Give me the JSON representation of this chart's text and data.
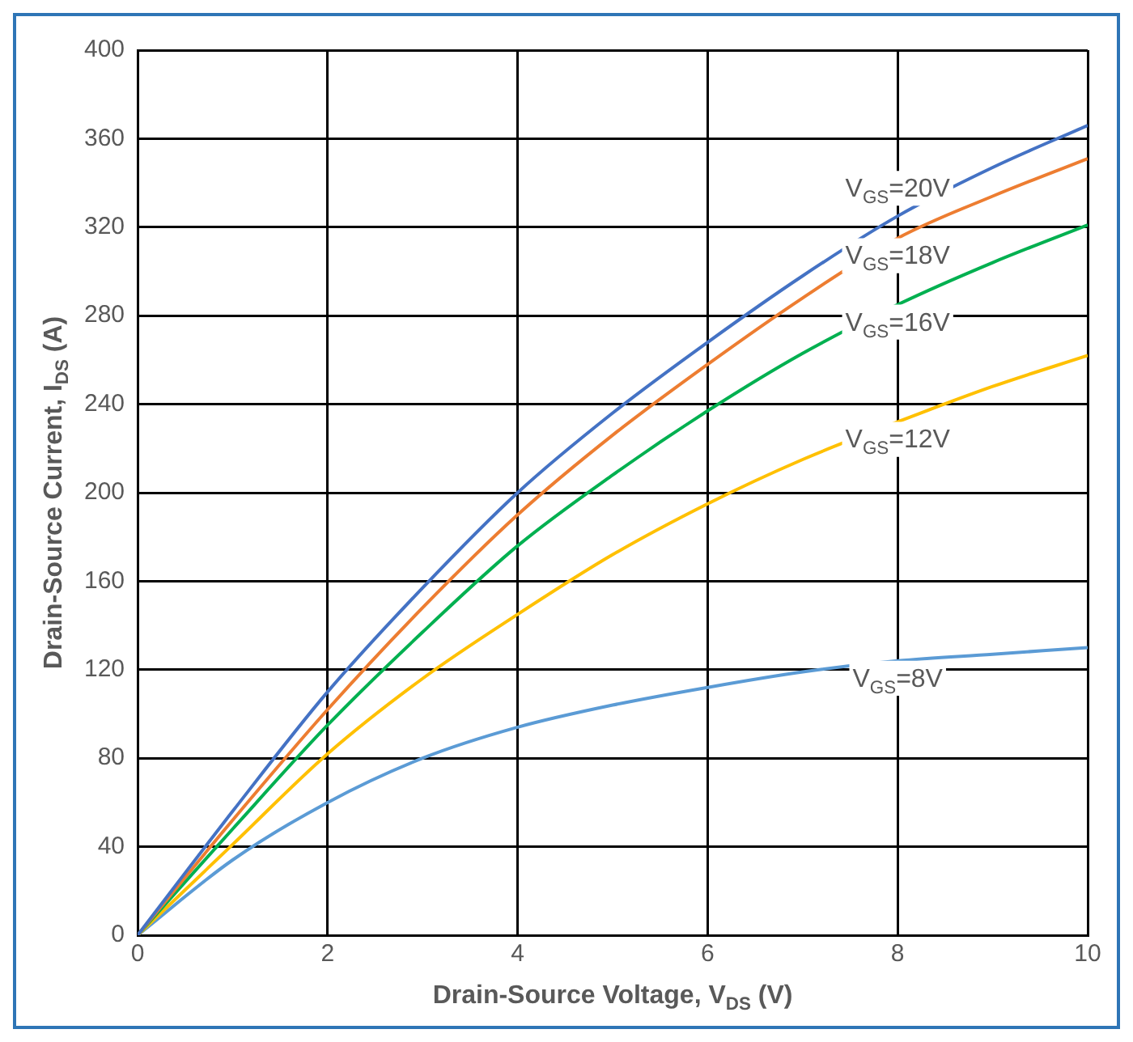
{
  "chart_data": {
    "type": "line",
    "xlabel": "Drain-Source Voltage, V$_{DS}$ (V)",
    "ylabel": "Drain-Source Current, I$_{DS}$ (A)",
    "xlim": [
      0,
      10
    ],
    "xticks": [
      0,
      2,
      4,
      6,
      8,
      10
    ],
    "ylim": [
      0,
      400
    ],
    "yticks": [
      0,
      40,
      80,
      120,
      160,
      200,
      240,
      280,
      320,
      360,
      400
    ],
    "grid": true,
    "marker": "none",
    "legend": false,
    "x": [
      0,
      1,
      2,
      3,
      4,
      5,
      6,
      7,
      8,
      9,
      10
    ],
    "series": [
      {
        "name": "V$_{GS}$=20V",
        "color": "#4472c4",
        "values": [
          0,
          56,
          110,
          157,
          200,
          236,
          268,
          298,
          325,
          347,
          366
        ]
      },
      {
        "name": "V$_{GS}$=18V",
        "color": "#ed7d31",
        "values": [
          0,
          52,
          102,
          148,
          190,
          226,
          258,
          288,
          315,
          334,
          351
        ]
      },
      {
        "name": "V$_{GS}$=16V",
        "color": "#00b050",
        "values": [
          0,
          48,
          95,
          137,
          176,
          208,
          237,
          263,
          285,
          304,
          321
        ]
      },
      {
        "name": "V$_{GS}$=12V",
        "color": "#ffc000",
        "values": [
          0,
          41,
          82,
          116,
          145,
          172,
          195,
          215,
          232,
          248,
          262
        ]
      },
      {
        "name": "V$_{GS}$=8V",
        "color": "#5b9bd5",
        "values": [
          0,
          34,
          60,
          80,
          94,
          104,
          112,
          119,
          124,
          127,
          130
        ]
      }
    ]
  }
}
